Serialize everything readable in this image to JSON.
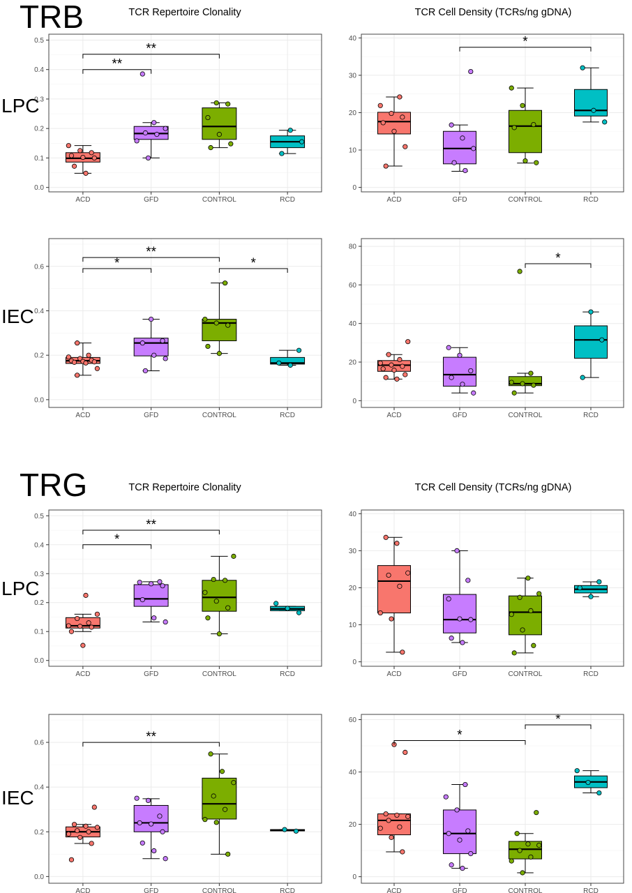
{
  "sections": [
    {
      "label": "TRB",
      "column_titles": [
        "TCR Repertoire Clonality",
        "TCR Cell Density (TCRs/ng gDNA)"
      ],
      "rows": [
        "LPC",
        "IEC"
      ]
    },
    {
      "label": "TRG",
      "column_titles": [
        "TCR Repertoire Clonality",
        "TCR Cell Density (TCRs/ng gDNA)"
      ],
      "rows": [
        "LPC",
        "IEC"
      ]
    }
  ],
  "colors": {
    "ACD": "#f8766d",
    "GFD": "#c77cff",
    "CONTROL": "#7cae00",
    "RCD": "#00bfc4",
    "panel_border": "#444444",
    "grid": "#ebebeb",
    "axis_text": "#4d4d4d"
  },
  "chart_data": [
    {
      "type": "box",
      "section": "TRB",
      "tissue": "LPC",
      "title": "TCR Repertoire Clonality",
      "categories": [
        "ACD",
        "GFD",
        "CONTROL",
        "RCD"
      ],
      "ylim": [
        -0.015,
        0.52
      ],
      "yticks": [
        "0.0",
        "0.1",
        "0.2",
        "0.3",
        "0.4",
        "0.5"
      ],
      "grid": true,
      "boxes": [
        {
          "group": "ACD",
          "q1": 0.086,
          "median": 0.099,
          "q3": 0.118,
          "lower": 0.048,
          "upper": 0.142
        },
        {
          "group": "GFD",
          "q1": 0.163,
          "median": 0.183,
          "q3": 0.207,
          "lower": 0.1,
          "upper": 0.22
        },
        {
          "group": "CONTROL",
          "q1": 0.163,
          "median": 0.207,
          "q3": 0.27,
          "lower": 0.135,
          "upper": 0.287
        },
        {
          "group": "RCD",
          "q1": 0.135,
          "median": 0.155,
          "q3": 0.175,
          "lower": 0.115,
          "upper": 0.194
        }
      ],
      "points": {
        "ACD": [
          0.142,
          0.125,
          0.118,
          0.108,
          0.102,
          0.1,
          0.072,
          0.048
        ],
        "GFD": [
          0.385,
          0.22,
          0.2,
          0.185,
          0.18,
          0.158,
          0.1
        ],
        "CONTROL": [
          0.287,
          0.283,
          0.237,
          0.18,
          0.148,
          0.135
        ],
        "RCD": [
          0.194,
          0.155,
          0.115
        ]
      },
      "significance": [
        {
          "from": "ACD",
          "to": "GFD",
          "y": 0.4,
          "label": "**"
        },
        {
          "from": "ACD",
          "to": "CONTROL",
          "y": 0.452,
          "label": "**"
        }
      ]
    },
    {
      "type": "box",
      "section": "TRB",
      "tissue": "LPC",
      "title": "TCR Cell Density (TCRs/ng gDNA)",
      "categories": [
        "ACD",
        "GFD",
        "CONTROL",
        "RCD"
      ],
      "ylim": [
        -1.2,
        41
      ],
      "yticks": [
        "0",
        "10",
        "20",
        "30",
        "40"
      ],
      "grid": true,
      "boxes": [
        {
          "group": "ACD",
          "q1": 14.3,
          "median": 17.6,
          "q3": 20.1,
          "lower": 5.7,
          "upper": 24.2
        },
        {
          "group": "GFD",
          "q1": 6.3,
          "median": 10.4,
          "q3": 15.0,
          "lower": 4.3,
          "upper": 16.7
        },
        {
          "group": "CONTROL",
          "q1": 9.3,
          "median": 16.4,
          "q3": 20.6,
          "lower": 6.5,
          "upper": 26.6
        },
        {
          "group": "RCD",
          "q1": 19.1,
          "median": 20.6,
          "q3": 26.2,
          "lower": 17.5,
          "upper": 32.0
        }
      ],
      "points": {
        "ACD": [
          24.2,
          21.9,
          19.8,
          18.8,
          17.3,
          15.0,
          10.9,
          5.7
        ],
        "GFD": [
          31.0,
          16.7,
          13.2,
          10.4,
          6.6,
          4.5
        ],
        "CONTROL": [
          26.6,
          21.9,
          16.8,
          16.0,
          7.1,
          6.6
        ],
        "RCD": [
          32.0,
          20.6,
          17.5
        ]
      },
      "significance": [
        {
          "from": "GFD",
          "to": "RCD",
          "y": 37.5,
          "label": "*"
        }
      ]
    },
    {
      "type": "box",
      "section": "TRB",
      "tissue": "IEC",
      "title": "",
      "categories": [
        "ACD",
        "GFD",
        "CONTROL",
        "RCD"
      ],
      "ylim": [
        -0.035,
        0.725
      ],
      "yticks": [
        "0.0",
        "0.2",
        "0.4",
        "0.6"
      ],
      "grid": true,
      "boxes": [
        {
          "group": "ACD",
          "q1": 0.163,
          "median": 0.175,
          "q3": 0.19,
          "lower": 0.11,
          "upper": 0.255
        },
        {
          "group": "GFD",
          "q1": 0.197,
          "median": 0.255,
          "q3": 0.277,
          "lower": 0.13,
          "upper": 0.362
        },
        {
          "group": "CONTROL",
          "q1": 0.265,
          "median": 0.345,
          "q3": 0.362,
          "lower": 0.208,
          "upper": 0.525
        },
        {
          "group": "RCD",
          "q1": 0.16,
          "median": 0.165,
          "q3": 0.19,
          "lower": 0.155,
          "upper": 0.222
        }
      ],
      "points": {
        "ACD": [
          0.255,
          0.2,
          0.192,
          0.185,
          0.178,
          0.175,
          0.172,
          0.17,
          0.168,
          0.165,
          0.14,
          0.11
        ],
        "GFD": [
          0.362,
          0.265,
          0.255,
          0.2,
          0.185,
          0.13
        ],
        "CONTROL": [
          0.525,
          0.362,
          0.345,
          0.335,
          0.24,
          0.208
        ],
        "RCD": [
          0.222,
          0.165,
          0.155
        ]
      },
      "significance": [
        {
          "from": "ACD",
          "to": "GFD",
          "y": 0.59,
          "label": "*"
        },
        {
          "from": "ACD",
          "to": "CONTROL",
          "y": 0.64,
          "label": "**"
        },
        {
          "from": "CONTROL",
          "to": "RCD",
          "y": 0.59,
          "label": "*"
        }
      ]
    },
    {
      "type": "box",
      "section": "TRB",
      "tissue": "IEC",
      "title": "",
      "categories": [
        "ACD",
        "GFD",
        "CONTROL",
        "RCD"
      ],
      "ylim": [
        -3.5,
        84
      ],
      "yticks": [
        "0",
        "20",
        "40",
        "60",
        "80"
      ],
      "grid": true,
      "boxes": [
        {
          "group": "ACD",
          "q1": 15.2,
          "median": 18.4,
          "q3": 20.8,
          "lower": 11.2,
          "upper": 23.9
        },
        {
          "group": "GFD",
          "q1": 7.5,
          "median": 13.5,
          "q3": 22.5,
          "lower": 4.0,
          "upper": 27.5
        },
        {
          "group": "CONTROL",
          "q1": 7.8,
          "median": 8.8,
          "q3": 12.5,
          "lower": 4.0,
          "upper": 14.2
        },
        {
          "group": "RCD",
          "q1": 22.0,
          "median": 31.5,
          "q3": 38.8,
          "lower": 12.0,
          "upper": 46.0
        }
      ],
      "points": {
        "ACD": [
          30.6,
          23.9,
          21.3,
          19.5,
          18.5,
          17.8,
          16.5,
          15.8,
          13.5,
          12.0,
          11.2
        ],
        "GFD": [
          27.5,
          23.5,
          15.5,
          12.0,
          8.5,
          4.0
        ],
        "CONTROL": [
          67.0,
          14.2,
          9.5,
          8.8,
          8.0,
          4.0
        ],
        "RCD": [
          46.0,
          31.5,
          12.0
        ]
      },
      "significance": [
        {
          "from": "CONTROL",
          "to": "RCD",
          "y": 71.0,
          "label": "*"
        }
      ]
    },
    {
      "type": "box",
      "section": "TRG",
      "tissue": "LPC",
      "title": "TCR Repertoire Clonality",
      "categories": [
        "ACD",
        "GFD",
        "CONTROL",
        "RCD"
      ],
      "ylim": [
        -0.02,
        0.52
      ],
      "yticks": [
        "0.0",
        "0.1",
        "0.2",
        "0.3",
        "0.4",
        "0.5"
      ],
      "grid": true,
      "boxes": [
        {
          "group": "ACD",
          "q1": 0.112,
          "median": 0.12,
          "q3": 0.148,
          "lower": 0.1,
          "upper": 0.16
        },
        {
          "group": "GFD",
          "q1": 0.187,
          "median": 0.213,
          "q3": 0.262,
          "lower": 0.133,
          "upper": 0.272
        },
        {
          "group": "CONTROL",
          "q1": 0.17,
          "median": 0.218,
          "q3": 0.277,
          "lower": 0.092,
          "upper": 0.36
        },
        {
          "group": "RCD",
          "q1": 0.172,
          "median": 0.178,
          "q3": 0.187,
          "lower": 0.172,
          "upper": 0.187
        }
      ],
      "points": {
        "ACD": [
          0.225,
          0.16,
          0.145,
          0.13,
          0.12,
          0.118,
          0.115,
          0.1,
          0.052
        ],
        "GFD": [
          0.272,
          0.27,
          0.265,
          0.258,
          0.21,
          0.147,
          0.133
        ],
        "CONTROL": [
          0.36,
          0.28,
          0.277,
          0.235,
          0.205,
          0.182,
          0.147,
          0.092
        ],
        "RCD": [
          0.197,
          0.18,
          0.165
        ]
      },
      "significance": [
        {
          "from": "ACD",
          "to": "GFD",
          "y": 0.4,
          "label": "*"
        },
        {
          "from": "ACD",
          "to": "CONTROL",
          "y": 0.45,
          "label": "**"
        }
      ]
    },
    {
      "type": "box",
      "section": "TRG",
      "tissue": "LPC",
      "title": "TCR Cell Density (TCRs/ng gDNA)",
      "categories": [
        "ACD",
        "GFD",
        "CONTROL",
        "RCD"
      ],
      "ylim": [
        -1.2,
        41
      ],
      "yticks": [
        "0",
        "10",
        "20",
        "30",
        "40"
      ],
      "grid": true,
      "boxes": [
        {
          "group": "ACD",
          "q1": 13.2,
          "median": 21.8,
          "q3": 26.0,
          "lower": 2.6,
          "upper": 33.6
        },
        {
          "group": "GFD",
          "q1": 7.8,
          "median": 11.4,
          "q3": 18.2,
          "lower": 5.2,
          "upper": 30.0
        },
        {
          "group": "CONTROL",
          "q1": 7.3,
          "median": 13.4,
          "q3": 17.8,
          "lower": 2.4,
          "upper": 22.6
        },
        {
          "group": "RCD",
          "q1": 18.6,
          "median": 19.6,
          "q3": 20.6,
          "lower": 17.6,
          "upper": 21.6
        }
      ],
      "points": {
        "ACD": [
          33.6,
          32.0,
          24.0,
          23.4,
          20.4,
          13.2,
          11.6,
          2.6
        ],
        "GFD": [
          30.0,
          22.0,
          17.0,
          11.6,
          11.4,
          6.4,
          5.2
        ],
        "CONTROL": [
          22.6,
          18.4,
          17.4,
          13.8,
          12.8,
          8.6,
          4.4,
          2.4
        ],
        "RCD": [
          21.6,
          20.0,
          17.6
        ]
      },
      "significance": []
    },
    {
      "type": "box",
      "section": "TRG",
      "tissue": "IEC",
      "title": "",
      "categories": [
        "ACD",
        "GFD",
        "CONTROL",
        "RCD"
      ],
      "ylim": [
        -0.03,
        0.725
      ],
      "yticks": [
        "0.0",
        "0.2",
        "0.4",
        "0.6"
      ],
      "grid": true,
      "boxes": [
        {
          "group": "ACD",
          "q1": 0.177,
          "median": 0.2,
          "q3": 0.222,
          "lower": 0.148,
          "upper": 0.233
        },
        {
          "group": "GFD",
          "q1": 0.2,
          "median": 0.24,
          "q3": 0.318,
          "lower": 0.08,
          "upper": 0.348
        },
        {
          "group": "CONTROL",
          "q1": 0.257,
          "median": 0.325,
          "q3": 0.44,
          "lower": 0.1,
          "upper": 0.548
        },
        {
          "group": "RCD",
          "q1": 0.204,
          "median": 0.207,
          "q3": 0.21,
          "lower": 0.204,
          "upper": 0.21
        }
      ],
      "points": {
        "ACD": [
          0.31,
          0.233,
          0.225,
          0.22,
          0.205,
          0.2,
          0.19,
          0.175,
          0.148,
          0.075
        ],
        "GFD": [
          0.35,
          0.34,
          0.27,
          0.24,
          0.235,
          0.2,
          0.15,
          0.115,
          0.08
        ],
        "CONTROL": [
          0.548,
          0.47,
          0.42,
          0.36,
          0.3,
          0.255,
          0.242,
          0.1
        ],
        "RCD": [
          0.21,
          0.203
        ]
      },
      "significance": [
        {
          "from": "ACD",
          "to": "CONTROL",
          "y": 0.6,
          "label": "**"
        }
      ]
    },
    {
      "type": "box",
      "section": "TRG",
      "tissue": "IEC",
      "title": "",
      "categories": [
        "ACD",
        "GFD",
        "CONTROL",
        "RCD"
      ],
      "ylim": [
        -2.5,
        62
      ],
      "yticks": [
        "0",
        "20",
        "40",
        "60"
      ],
      "grid": true,
      "boxes": [
        {
          "group": "ACD",
          "q1": 16.0,
          "median": 21.5,
          "q3": 24.0,
          "lower": 9.5,
          "upper": 24.0
        },
        {
          "group": "GFD",
          "q1": 8.8,
          "median": 16.5,
          "q3": 25.5,
          "lower": 3.2,
          "upper": 35.2
        },
        {
          "group": "CONTROL",
          "q1": 6.8,
          "median": 10.5,
          "q3": 13.5,
          "lower": 1.5,
          "upper": 16.5
        },
        {
          "group": "RCD",
          "q1": 34.0,
          "median": 36.2,
          "q3": 38.5,
          "lower": 32.0,
          "upper": 40.5
        }
      ],
      "points": {
        "ACD": [
          50.5,
          47.5,
          24.0,
          23.5,
          23.0,
          21.5,
          19.0,
          18.5,
          15.0,
          9.5
        ],
        "GFD": [
          35.2,
          30.5,
          25.5,
          17.5,
          16.5,
          14.0,
          8.8,
          4.5,
          3.2
        ],
        "CONTROL": [
          24.5,
          16.5,
          12.5,
          12.0,
          10.0,
          7.5,
          6.0,
          1.5
        ],
        "RCD": [
          40.5,
          36.0,
          32.0
        ]
      },
      "significance": [
        {
          "from": "ACD",
          "to": "CONTROL",
          "y": 52.0,
          "label": "*"
        },
        {
          "from": "CONTROL",
          "to": "RCD",
          "y": 58.0,
          "label": "*"
        }
      ]
    }
  ]
}
